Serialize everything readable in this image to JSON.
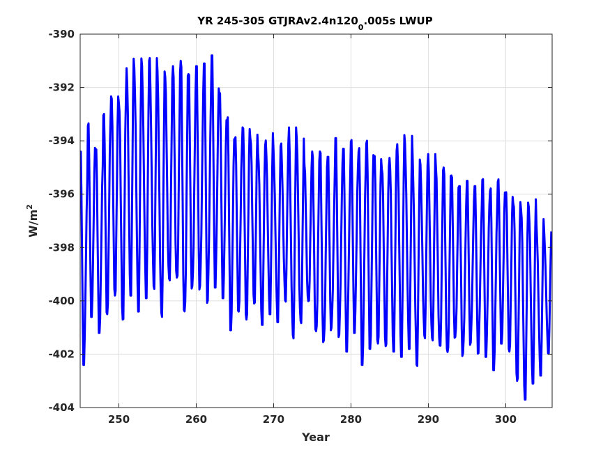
{
  "chart_data": {
    "type": "line",
    "title": "YR 245-305 GTJRAv2.4n120",
    "title_subscript": "0",
    "title_suffix": ".005s LWUP",
    "xlabel": "Year",
    "ylabel_base": "W/m",
    "ylabel_sup": "2",
    "xlim": [
      245,
      306
    ],
    "ylim": [
      -404,
      -390
    ],
    "xticks": [
      250,
      260,
      270,
      280,
      290,
      300
    ],
    "yticks": [
      -404,
      -402,
      -400,
      -398,
      -396,
      -394,
      -392,
      -390
    ],
    "grid": true,
    "series": [
      {
        "color": "#0000ff",
        "step": 0.0833,
        "x_start": 245.0,
        "annual_max": [
          -394.4,
          -393.2,
          -394.0,
          -392.4,
          -391.6,
          -391.8,
          -390.6,
          -390.8,
          -391.0,
          -390.9,
          -391.4,
          -391.6,
          -391.2,
          -391.0,
          -391.5,
          -391.2,
          -391.1,
          -390.8,
          -392.1,
          -392.8,
          -393.4,
          -392.8,
          -393.3,
          -393.9,
          -393.6,
          -394.2,
          -394.1,
          -393.5,
          -393.9,
          -394.9,
          -394.4,
          -394.4,
          -394.6,
          -393.9,
          -394.3,
          -393.9,
          -394.0,
          -393.5,
          -393.9,
          -394.4,
          -394.0,
          -393.6,
          -393.8,
          -394.7,
          -394.9,
          -394.5,
          -395.0,
          -395.0,
          -395.3,
          -395.7,
          -395.5,
          -395.7,
          -395.4,
          -395.6,
          -395.1,
          -395.4,
          -395.7,
          -395.9,
          -396.0,
          -396.9,
          -397.4
        ],
        "annual_min": [
          -402.4,
          -400.6,
          -401.2,
          -400.5,
          -399.8,
          -400.7,
          -399.8,
          -400.4,
          -399.9,
          -399.7,
          -401.0,
          -399.8,
          -399.9,
          -401.3,
          -400.1,
          -399.9,
          -400.2,
          -399.5,
          -399.9,
          -401.1,
          -400.4,
          -400.7,
          -400.1,
          -400.9,
          -400.5,
          -400.8,
          -400.1,
          -401.7,
          -401.3,
          -400.5,
          -401.8,
          -402.1,
          -401.4,
          -401.5,
          -401.9,
          -401.2,
          -402.4,
          -401.8,
          -401.6,
          -401.7,
          -401.9,
          -402.1,
          -401.8,
          -402.5,
          -401.6,
          -401.9,
          -402.3,
          -402.6,
          -401.9,
          -402.4,
          -401.8,
          -402.0,
          -402.1,
          -402.6,
          -401.6,
          -401.9,
          -403.0,
          -403.7,
          -403.1,
          -402.8,
          -402.0
        ]
      }
    ]
  }
}
